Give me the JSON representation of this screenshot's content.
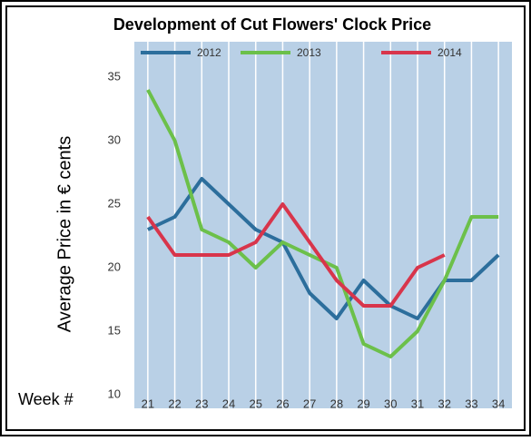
{
  "chart_data": {
    "type": "line",
    "title": "Development of Cut Flowers' Clock Price",
    "y_label": "Average Price in € cents",
    "x_label": "Week #",
    "categories": [
      "21",
      "22",
      "23",
      "24",
      "25",
      "26",
      "27",
      "28",
      "29",
      "30",
      "31",
      "32",
      "33",
      "34"
    ],
    "series": [
      {
        "name": "2012",
        "color": "#2c6e9c",
        "values": [
          23,
          24,
          27,
          25,
          23,
          22,
          18,
          16,
          19,
          17,
          16,
          19,
          19,
          21
        ]
      },
      {
        "name": "2013",
        "color": "#6cc04a",
        "values": [
          34,
          30,
          23,
          22,
          20,
          22,
          21,
          20,
          14,
          13,
          15,
          19,
          24,
          24
        ]
      },
      {
        "name": "2014",
        "color": "#d8354b",
        "values": [
          24,
          21,
          21,
          21,
          22,
          25,
          22,
          19,
          17,
          17,
          20,
          21,
          null,
          null
        ]
      }
    ],
    "ylim": [
      10,
      35
    ],
    "yticks": [
      10,
      15,
      20,
      25,
      30,
      35
    ],
    "grid": true
  }
}
